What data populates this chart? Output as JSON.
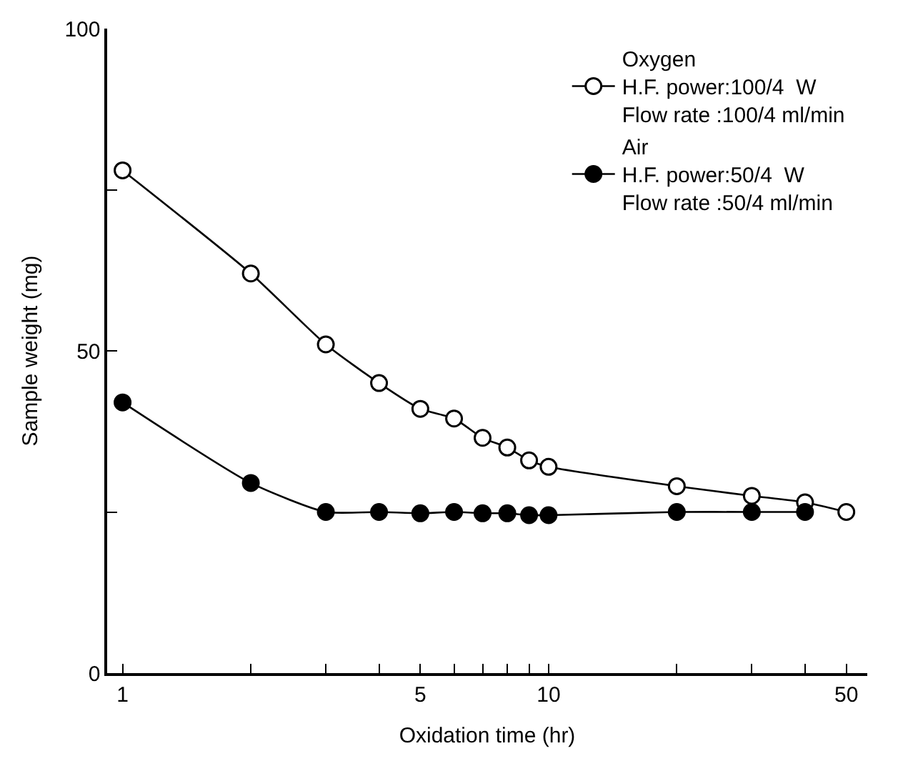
{
  "chart_data": {
    "type": "line",
    "xlabel": "Oxidation time (hr)",
    "ylabel": "Sample weight (mg)",
    "log": "x",
    "xlim": [
      0.92,
      56
    ],
    "xticks": [
      1,
      {
        "value": 2,
        "label": null
      },
      {
        "value": 3,
        "label": null
      },
      {
        "value": 4,
        "label": null
      },
      5,
      {
        "value": 6,
        "label": null
      },
      {
        "value": 7,
        "label": null
      },
      {
        "value": 8,
        "label": null
      },
      {
        "value": 9,
        "label": null
      },
      10,
      {
        "value": 20,
        "label": null
      },
      {
        "value": 30,
        "label": null
      },
      {
        "value": 40,
        "label": null
      },
      50
    ],
    "ylim": [
      0,
      100
    ],
    "yticks": [
      0,
      {
        "value": 25,
        "label": null
      },
      50,
      {
        "value": 75,
        "label": null
      },
      100
    ],
    "legend": "top right",
    "line_style": "solid",
    "x": [
      1,
      2,
      3,
      4,
      5,
      6,
      7,
      8,
      9,
      10,
      20,
      30,
      40,
      50
    ],
    "series": [
      {
        "name": "Oxygen\nH.F. power:100/4  W\nFlow rate :100/4 ml/min",
        "color": "#000000",
        "marker": "circle-open",
        "values": [
          78,
          62,
          51,
          45,
          41,
          39.5,
          36.5,
          35,
          33,
          32,
          29,
          27.5,
          26.5,
          25
        ]
      },
      {
        "name": "Air\nH.F. power:50/4  W\nFlow rate :50/4 ml/min",
        "color": "#000000",
        "marker": "circle",
        "values": [
          42,
          29.5,
          25,
          25,
          24.8,
          25,
          24.8,
          24.8,
          24.5,
          24.5,
          25,
          25,
          25,
          null
        ]
      }
    ]
  }
}
